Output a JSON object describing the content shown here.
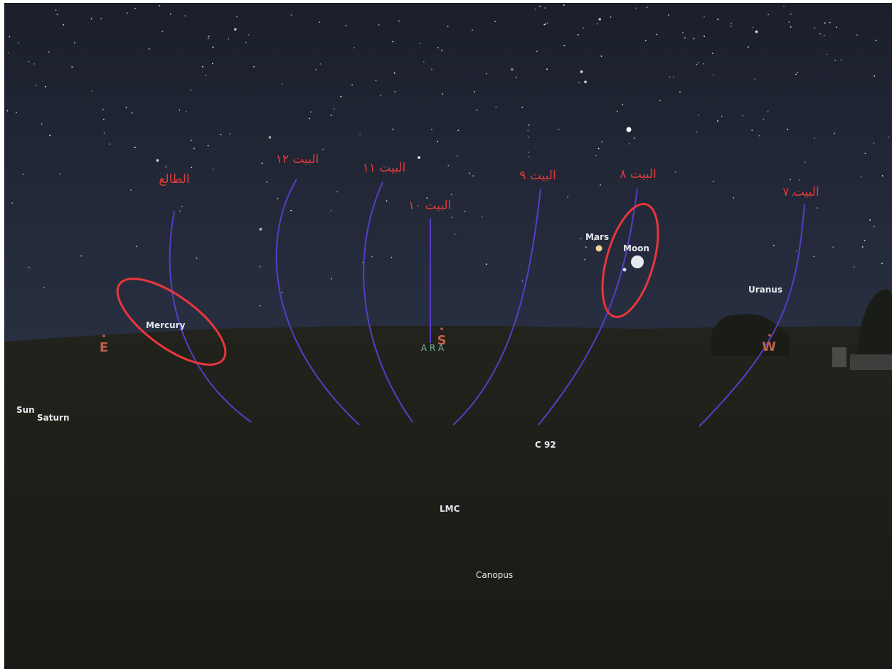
{
  "house_labels": [
    "الطالع",
    "البيت ١٢",
    "البيت ١١",
    "البيت ١٠",
    "البيت ٩",
    "البيت ٨",
    "البيت ٧"
  ],
  "object_labels": [
    "Mars",
    "Moon",
    "Uranus",
    "Mercury",
    "Sun",
    "Saturn",
    "C 92",
    "LMC",
    "Canopus"
  ],
  "compass": [
    "E",
    "S",
    "W"
  ],
  "constellation": "A R A"
}
